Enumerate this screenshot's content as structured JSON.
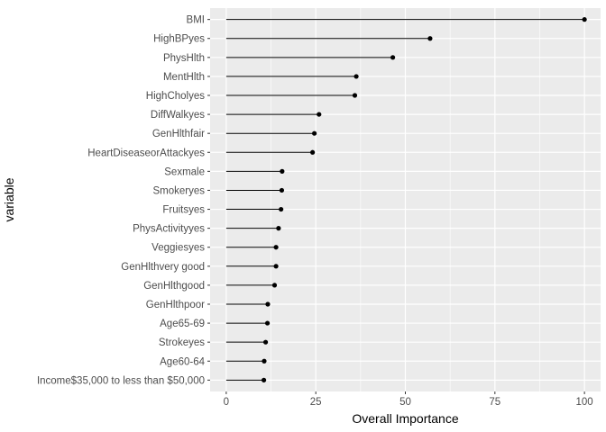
{
  "chart_data": {
    "type": "lollipop",
    "xlabel": "Overall Importance",
    "ylabel": "variable",
    "xlim": [
      -4.5,
      104.5
    ],
    "x_ticks": [
      0,
      25,
      50,
      75,
      100
    ],
    "grid": true,
    "panel_color": "#ebebeb",
    "grid_color": "#ffffff",
    "mark_color": "#000000",
    "categories": [
      "BMI",
      "HighBPyes",
      "PhysHlth",
      "MentHlth",
      "HighCholyes",
      "DiffWalkyes",
      "GenHlthfair",
      "HeartDiseaseorAttackyes",
      "Sexmale",
      "Smokeryes",
      "Fruitsyes",
      "PhysActivityyes",
      "Veggiesyes",
      "GenHlthvery good",
      "GenHlthgood",
      "GenHlthpoor",
      "Age65-69",
      "Strokeyes",
      "Age60-64",
      "Income$35,000 to less than $50,000"
    ],
    "values": [
      100,
      56.9,
      46.5,
      36.3,
      35.9,
      25.9,
      24.6,
      24.1,
      15.6,
      15.5,
      15.3,
      14.6,
      13.9,
      13.9,
      13.5,
      11.6,
      11.5,
      11.0,
      10.6,
      10.5
    ]
  }
}
